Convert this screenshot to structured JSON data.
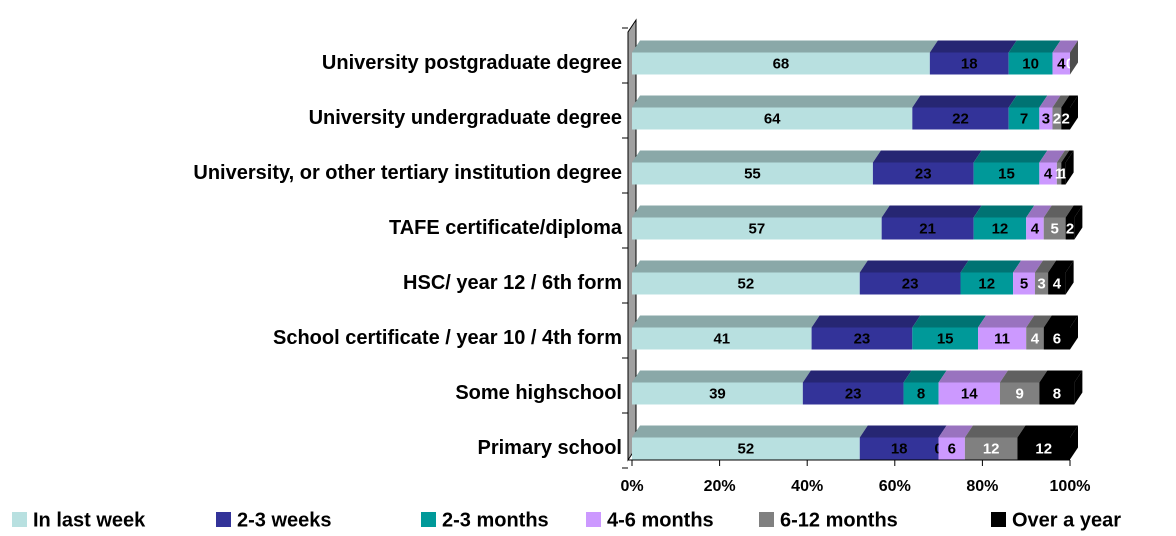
{
  "chart_data": {
    "type": "stacked_bar_horizontal",
    "categories": [
      "University postgraduate degree",
      "University undergraduate degree",
      "University, or other tertiary institution degree",
      "TAFE certificate/diploma",
      "HSC/ year 12 / 6th form",
      "School certificate / year 10 / 4th form",
      "Some highschool",
      "Primary school"
    ],
    "series": [
      {
        "name": "In last week",
        "color": "#b8e0e0",
        "label_color": "#000000",
        "values": [
          68,
          64,
          55,
          57,
          52,
          41,
          39,
          52
        ]
      },
      {
        "name": "2-3 weeks",
        "color": "#333399",
        "label_color": "#000000",
        "values": [
          18,
          22,
          23,
          21,
          23,
          23,
          23,
          18
        ]
      },
      {
        "name": "2-3 months",
        "color": "#009999",
        "label_color": "#000000",
        "values": [
          10,
          7,
          15,
          12,
          12,
          15,
          8,
          0
        ]
      },
      {
        "name": "4-6 months",
        "color": "#cc99ff",
        "label_color": "#000000",
        "values": [
          4,
          3,
          4,
          4,
          5,
          11,
          14,
          6
        ]
      },
      {
        "name": "6-12 months",
        "color": "#808080",
        "label_color": "#ffffff",
        "values": [
          0,
          2,
          1,
          5,
          3,
          4,
          9,
          12
        ]
      },
      {
        "name": "Over a year",
        "color": "#000000",
        "label_color": "#ffffff",
        "values": [
          null,
          2,
          1,
          2,
          4,
          6,
          8,
          12
        ]
      }
    ],
    "xlim": [
      0,
      100
    ],
    "xticks": [
      {
        "value": 0,
        "label": "0%"
      },
      {
        "value": 20,
        "label": "20%"
      },
      {
        "value": 40,
        "label": "40%"
      },
      {
        "value": 60,
        "label": "60%"
      },
      {
        "value": 80,
        "label": "80%"
      },
      {
        "value": 100,
        "label": "100%"
      }
    ],
    "legend": "bottom"
  }
}
